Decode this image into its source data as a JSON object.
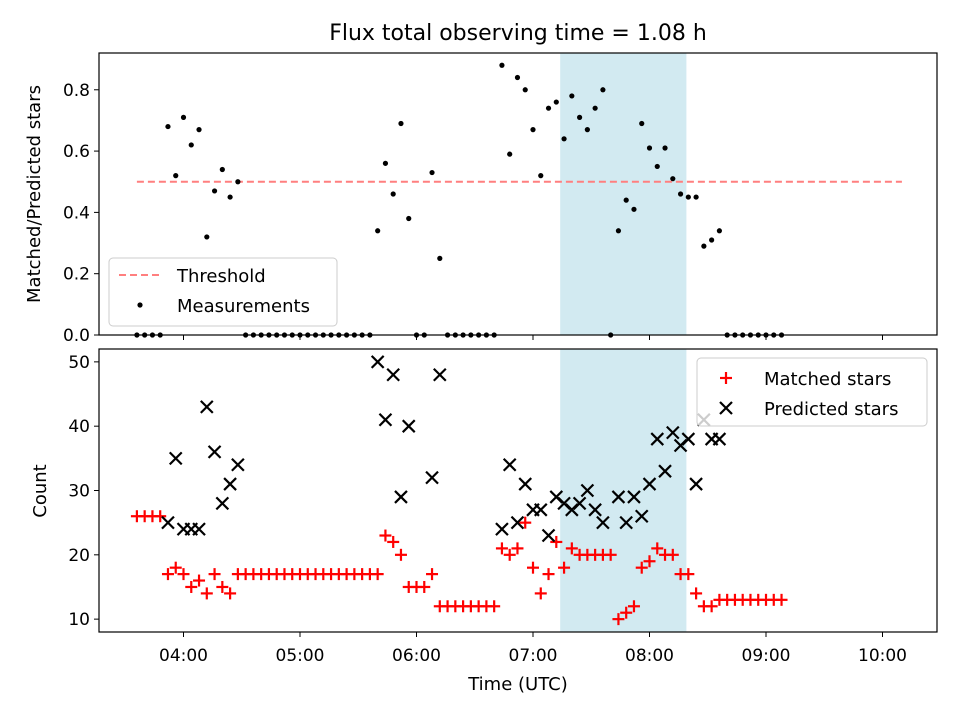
{
  "title": "Flux total observing time = 1.08 h",
  "xlabel": "Time (UTC)",
  "x_ticks": [
    "04:00",
    "05:00",
    "06:00",
    "07:00",
    "08:00",
    "09:00",
    "10:00"
  ],
  "highlight_window": {
    "start": "07:14",
    "end": "08:19",
    "color": "#add8e6"
  },
  "chart_data": [
    {
      "type": "scatter",
      "ylabel": "Matched/Predicted stars",
      "ylim": [
        0,
        0.92
      ],
      "y_ticks": [
        "0.0",
        "0.2",
        "0.4",
        "0.6",
        "0.8"
      ],
      "y_tick_values": [
        0,
        0.2,
        0.4,
        0.6,
        0.8
      ],
      "legend": {
        "placement": "lower-left"
      },
      "threshold": {
        "name": "Threshold",
        "value": 0.5,
        "x_start": "03:36",
        "x_end": "10:10",
        "color": "#ff7f7f"
      },
      "measurements": {
        "name": "Measurements",
        "color": "#000000",
        "points": [
          [
            "03:36",
            0
          ],
          [
            "03:40",
            0
          ],
          [
            "03:44",
            0
          ],
          [
            "03:48",
            0
          ],
          [
            "03:52",
            0.68
          ],
          [
            "03:56",
            0.52
          ],
          [
            "04:00",
            0.71
          ],
          [
            "04:04",
            0.62
          ],
          [
            "04:08",
            0.67
          ],
          [
            "04:12",
            0.32
          ],
          [
            "04:16",
            0.47
          ],
          [
            "04:20",
            0.54
          ],
          [
            "04:24",
            0.45
          ],
          [
            "04:28",
            0.5
          ],
          [
            "04:32",
            0
          ],
          [
            "04:36",
            0
          ],
          [
            "04:40",
            0
          ],
          [
            "04:44",
            0
          ],
          [
            "04:48",
            0
          ],
          [
            "04:52",
            0
          ],
          [
            "04:56",
            0
          ],
          [
            "05:00",
            0
          ],
          [
            "05:04",
            0
          ],
          [
            "05:08",
            0
          ],
          [
            "05:12",
            0
          ],
          [
            "05:16",
            0
          ],
          [
            "05:20",
            0
          ],
          [
            "05:24",
            0
          ],
          [
            "05:28",
            0
          ],
          [
            "05:32",
            0
          ],
          [
            "05:36",
            0
          ],
          [
            "05:40",
            0.34
          ],
          [
            "05:44",
            0.56
          ],
          [
            "05:48",
            0.46
          ],
          [
            "05:52",
            0.69
          ],
          [
            "05:56",
            0.38
          ],
          [
            "06:00",
            0
          ],
          [
            "06:04",
            0
          ],
          [
            "06:08",
            0.53
          ],
          [
            "06:12",
            0.25
          ],
          [
            "06:16",
            0
          ],
          [
            "06:20",
            0
          ],
          [
            "06:24",
            0
          ],
          [
            "06:28",
            0
          ],
          [
            "06:32",
            0
          ],
          [
            "06:36",
            0
          ],
          [
            "06:40",
            0
          ],
          [
            "06:44",
            0.88
          ],
          [
            "06:48",
            0.59
          ],
          [
            "06:52",
            0.84
          ],
          [
            "06:56",
            0.8
          ],
          [
            "07:00",
            0.67
          ],
          [
            "07:04",
            0.52
          ],
          [
            "07:08",
            0.74
          ],
          [
            "07:12",
            0.76
          ],
          [
            "07:16",
            0.64
          ],
          [
            "07:20",
            0.78
          ],
          [
            "07:24",
            0.71
          ],
          [
            "07:28",
            0.67
          ],
          [
            "07:32",
            0.74
          ],
          [
            "07:36",
            0.8
          ],
          [
            "07:40",
            0
          ],
          [
            "07:44",
            0.34
          ],
          [
            "07:48",
            0.44
          ],
          [
            "07:52",
            0.41
          ],
          [
            "07:56",
            0.69
          ],
          [
            "08:00",
            0.61
          ],
          [
            "08:04",
            0.55
          ],
          [
            "08:08",
            0.61
          ],
          [
            "08:12",
            0.51
          ],
          [
            "08:16",
            0.46
          ],
          [
            "08:20",
            0.45
          ],
          [
            "08:24",
            0.45
          ],
          [
            "08:28",
            0.29
          ],
          [
            "08:32",
            0.31
          ],
          [
            "08:36",
            0.34
          ],
          [
            "08:40",
            0
          ],
          [
            "08:44",
            0
          ],
          [
            "08:48",
            0
          ],
          [
            "08:52",
            0
          ],
          [
            "08:56",
            0
          ],
          [
            "09:00",
            0
          ],
          [
            "09:04",
            0
          ],
          [
            "09:08",
            0
          ]
        ]
      }
    },
    {
      "type": "scatter",
      "ylabel": "Count",
      "ylim": [
        8,
        52
      ],
      "y_ticks": [
        "10",
        "20",
        "30",
        "40",
        "50"
      ],
      "y_tick_values": [
        10,
        20,
        30,
        40,
        50
      ],
      "legend": {
        "placement": "top-right"
      },
      "series": [
        {
          "name": "Matched stars",
          "marker": "plus",
          "color": "#ff0000",
          "points": [
            [
              "03:36",
              26
            ],
            [
              "03:40",
              26
            ],
            [
              "03:44",
              26
            ],
            [
              "03:48",
              26
            ],
            [
              "03:52",
              17
            ],
            [
              "03:56",
              18
            ],
            [
              "04:00",
              17
            ],
            [
              "04:04",
              15
            ],
            [
              "04:08",
              16
            ],
            [
              "04:12",
              14
            ],
            [
              "04:16",
              17
            ],
            [
              "04:20",
              15
            ],
            [
              "04:24",
              14
            ],
            [
              "04:28",
              17
            ],
            [
              "04:32",
              17
            ],
            [
              "04:36",
              17
            ],
            [
              "04:40",
              17
            ],
            [
              "04:44",
              17
            ],
            [
              "04:48",
              17
            ],
            [
              "04:52",
              17
            ],
            [
              "04:56",
              17
            ],
            [
              "05:00",
              17
            ],
            [
              "05:04",
              17
            ],
            [
              "05:08",
              17
            ],
            [
              "05:12",
              17
            ],
            [
              "05:16",
              17
            ],
            [
              "05:20",
              17
            ],
            [
              "05:24",
              17
            ],
            [
              "05:28",
              17
            ],
            [
              "05:32",
              17
            ],
            [
              "05:36",
              17
            ],
            [
              "05:40",
              17
            ],
            [
              "05:44",
              23
            ],
            [
              "05:48",
              22
            ],
            [
              "05:52",
              20
            ],
            [
              "05:56",
              15
            ],
            [
              "06:00",
              15
            ],
            [
              "06:04",
              15
            ],
            [
              "06:08",
              17
            ],
            [
              "06:12",
              12
            ],
            [
              "06:16",
              12
            ],
            [
              "06:20",
              12
            ],
            [
              "06:24",
              12
            ],
            [
              "06:28",
              12
            ],
            [
              "06:32",
              12
            ],
            [
              "06:36",
              12
            ],
            [
              "06:40",
              12
            ],
            [
              "06:44",
              21
            ],
            [
              "06:48",
              20
            ],
            [
              "06:52",
              21
            ],
            [
              "06:56",
              25
            ],
            [
              "07:00",
              18
            ],
            [
              "07:04",
              14
            ],
            [
              "07:08",
              17
            ],
            [
              "07:12",
              22
            ],
            [
              "07:16",
              18
            ],
            [
              "07:20",
              21
            ],
            [
              "07:24",
              20
            ],
            [
              "07:28",
              20
            ],
            [
              "07:32",
              20
            ],
            [
              "07:36",
              20
            ],
            [
              "07:40",
              20
            ],
            [
              "07:44",
              10
            ],
            [
              "07:48",
              11
            ],
            [
              "07:52",
              12
            ],
            [
              "07:56",
              18
            ],
            [
              "08:00",
              19
            ],
            [
              "08:04",
              21
            ],
            [
              "08:08",
              20
            ],
            [
              "08:12",
              20
            ],
            [
              "08:16",
              17
            ],
            [
              "08:20",
              17
            ],
            [
              "08:24",
              14
            ],
            [
              "08:28",
              12
            ],
            [
              "08:32",
              12
            ],
            [
              "08:36",
              13
            ],
            [
              "08:40",
              13
            ],
            [
              "08:44",
              13
            ],
            [
              "08:48",
              13
            ],
            [
              "08:52",
              13
            ],
            [
              "08:56",
              13
            ],
            [
              "09:00",
              13
            ],
            [
              "09:04",
              13
            ],
            [
              "09:08",
              13
            ]
          ]
        },
        {
          "name": "Predicted stars",
          "marker": "x",
          "color": "#000000",
          "points": [
            [
              "03:52",
              25
            ],
            [
              "03:56",
              35
            ],
            [
              "04:00",
              24
            ],
            [
              "04:04",
              24
            ],
            [
              "04:08",
              24
            ],
            [
              "04:12",
              43
            ],
            [
              "04:16",
              36
            ],
            [
              "04:20",
              28
            ],
            [
              "04:24",
              31
            ],
            [
              "04:28",
              34
            ],
            [
              "05:40",
              50
            ],
            [
              "05:44",
              41
            ],
            [
              "05:48",
              48
            ],
            [
              "05:52",
              29
            ],
            [
              "05:56",
              40
            ],
            [
              "06:08",
              32
            ],
            [
              "06:12",
              48
            ],
            [
              "06:44",
              24
            ],
            [
              "06:48",
              34
            ],
            [
              "06:52",
              25
            ],
            [
              "06:56",
              31
            ],
            [
              "07:00",
              27
            ],
            [
              "07:04",
              27
            ],
            [
              "07:08",
              23
            ],
            [
              "07:12",
              29
            ],
            [
              "07:16",
              28
            ],
            [
              "07:20",
              27
            ],
            [
              "07:24",
              28
            ],
            [
              "07:28",
              30
            ],
            [
              "07:32",
              27
            ],
            [
              "07:36",
              25
            ],
            [
              "07:44",
              29
            ],
            [
              "07:48",
              25
            ],
            [
              "07:52",
              29
            ],
            [
              "07:56",
              26
            ],
            [
              "08:00",
              31
            ],
            [
              "08:04",
              38
            ],
            [
              "08:08",
              33
            ],
            [
              "08:12",
              39
            ],
            [
              "08:16",
              37
            ],
            [
              "08:20",
              38
            ],
            [
              "08:24",
              31
            ],
            [
              "08:28",
              41
            ],
            [
              "08:32",
              38
            ],
            [
              "08:36",
              38
            ]
          ]
        }
      ]
    }
  ]
}
